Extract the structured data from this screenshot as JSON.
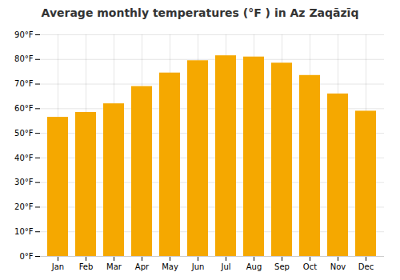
{
  "chart_data": {
    "type": "bar",
    "title": "Average monthly temperatures (°F ) in Az Zaqāzīq",
    "categories": [
      "Jan",
      "Feb",
      "Mar",
      "Apr",
      "May",
      "Jun",
      "Jul",
      "Aug",
      "Sep",
      "Oct",
      "Nov",
      "Dec"
    ],
    "values": [
      56.5,
      58.5,
      62,
      69,
      74.5,
      79.5,
      81.5,
      81,
      78.5,
      73.5,
      66,
      59
    ],
    "color": "#F5A800",
    "ylim": [
      0,
      90
    ],
    "yticks": [
      {
        "value": 0,
        "label": "0°F"
      },
      {
        "value": 10,
        "label": "10°F"
      },
      {
        "value": 20,
        "label": "20°F"
      },
      {
        "value": 30,
        "label": "30°F"
      },
      {
        "value": 40,
        "label": "40°F"
      },
      {
        "value": 50,
        "label": "50°F"
      },
      {
        "value": 60,
        "label": "60°F"
      },
      {
        "value": 70,
        "label": "70°F"
      },
      {
        "value": 80,
        "label": "80°F"
      },
      {
        "value": 90,
        "label": "90°F"
      }
    ],
    "grid": true
  }
}
